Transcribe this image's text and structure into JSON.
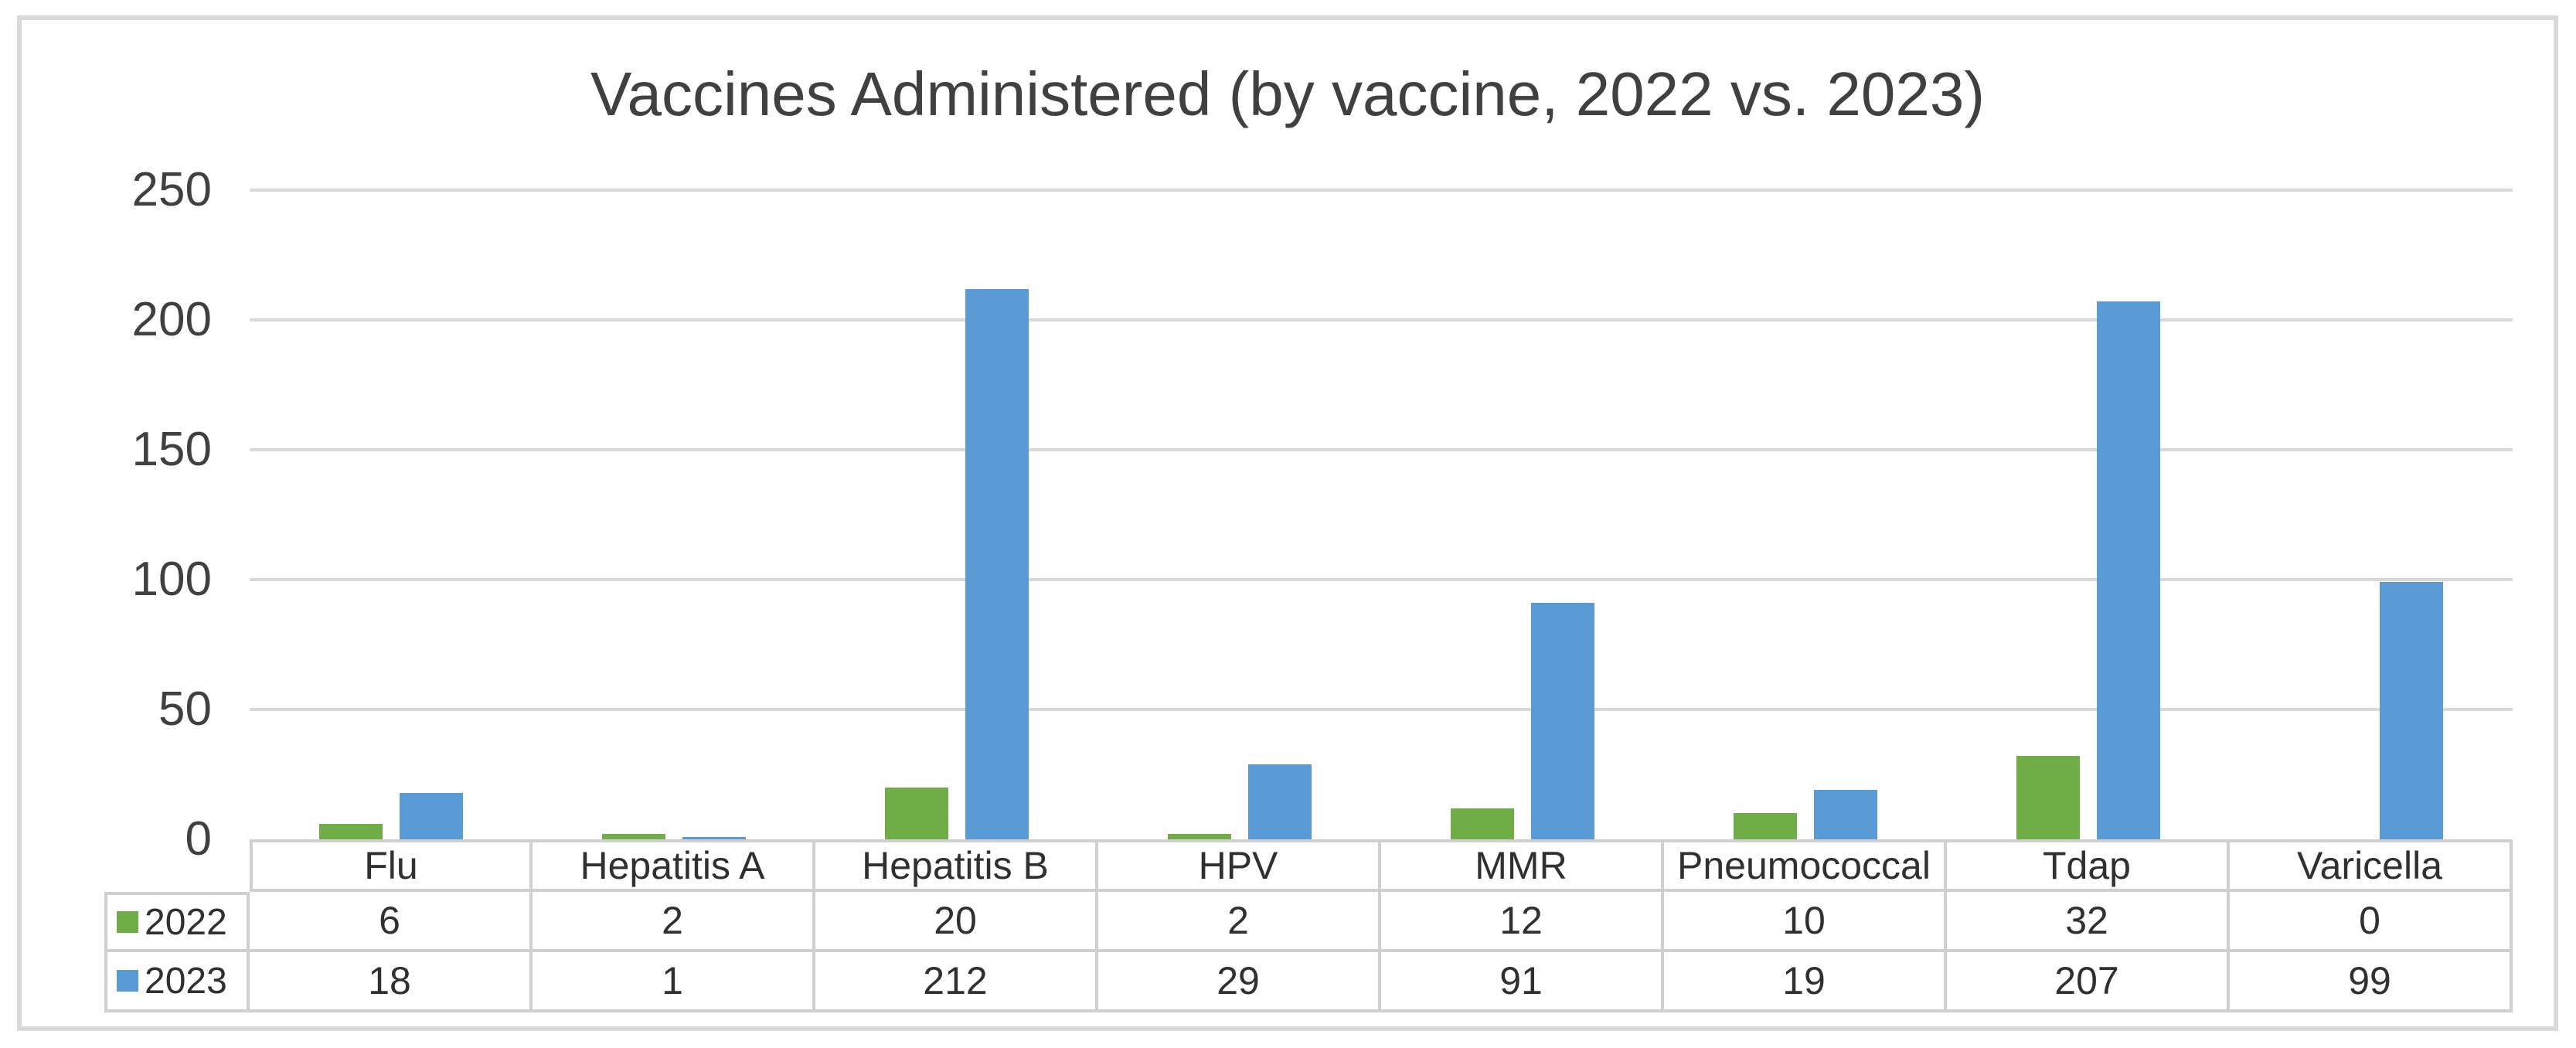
{
  "chart_data": {
    "type": "bar",
    "title": "Vaccines Administered (by vaccine, 2022 vs. 2023)",
    "categories": [
      "Flu",
      "Hepatitis A",
      "Hepatitis B",
      "HPV",
      "MMR",
      "Pneumococcal",
      "Tdap",
      "Varicella"
    ],
    "series": [
      {
        "name": "2022",
        "color": "#70AD47",
        "values": [
          6,
          2,
          20,
          2,
          12,
          10,
          32,
          0
        ]
      },
      {
        "name": "2023",
        "color": "#5B9BD5",
        "values": [
          18,
          1,
          212,
          29,
          91,
          19,
          207,
          99
        ]
      }
    ],
    "xlabel": "",
    "ylabel": "",
    "ylim": [
      0,
      250
    ],
    "y_ticks": [
      0,
      50,
      100,
      150,
      200,
      250
    ],
    "grid": true,
    "gridline_color": "#D9D9D9",
    "legend_position": "data-table-left-column",
    "data_table_shown": true
  }
}
